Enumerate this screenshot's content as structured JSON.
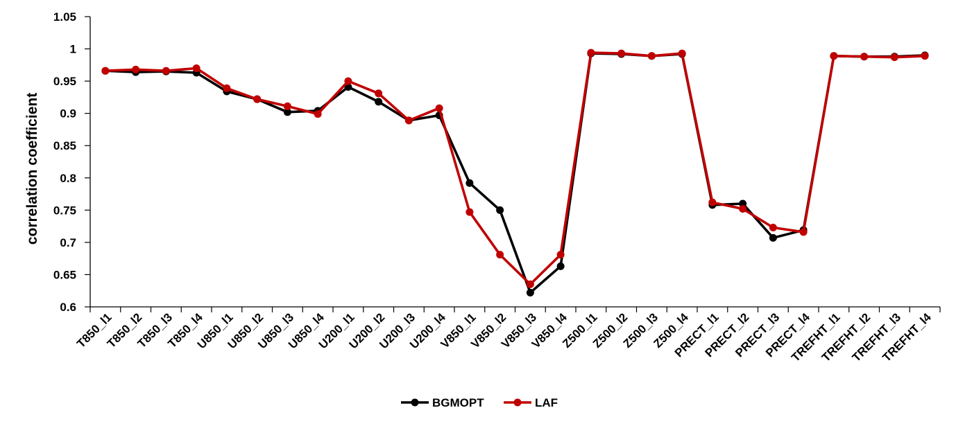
{
  "chart_data": {
    "type": "line",
    "title": "",
    "xlabel": "",
    "ylabel": "correlation coefficient",
    "ylim": [
      0.6,
      1.05
    ],
    "yticks": [
      "0.6",
      "0.65",
      "0.7",
      "0.75",
      "0.8",
      "0.85",
      "0.9",
      "0.95",
      "1",
      "1.05"
    ],
    "grid": false,
    "legend_position": "bottom-center",
    "categories": [
      "T850_l1",
      "T850_l2",
      "T850_l3",
      "T850_l4",
      "U850_l1",
      "U850_l2",
      "U850_l3",
      "U850_l4",
      "U200_l1",
      "U200_l2",
      "U200_l3",
      "U200_l4",
      "V850_l1",
      "V850_l2",
      "V850_l3",
      "V850_l4",
      "Z500_l1",
      "Z500_l2",
      "Z500_l3",
      "Z500_l4",
      "PRECT_l1",
      "PRECT_l2",
      "PRECT_l3",
      "PRECT_l4",
      "TREFHT_l1",
      "TREFHT_l2",
      "TREFHT_l3",
      "TREFHT_l4"
    ],
    "series": [
      {
        "name": "BGMOPT",
        "color": "#000000",
        "values": [
          0.966,
          0.964,
          0.965,
          0.963,
          0.934,
          0.922,
          0.902,
          0.904,
          0.941,
          0.918,
          0.889,
          0.897,
          0.792,
          0.75,
          0.622,
          0.663,
          0.993,
          0.992,
          0.989,
          0.992,
          0.758,
          0.76,
          0.707,
          0.719,
          0.989,
          0.988,
          0.988,
          0.99
        ]
      },
      {
        "name": "LAF",
        "color": "#C00000",
        "values": [
          0.966,
          0.968,
          0.966,
          0.97,
          0.939,
          0.922,
          0.911,
          0.899,
          0.95,
          0.931,
          0.889,
          0.908,
          0.747,
          0.681,
          0.635,
          0.681,
          0.994,
          0.993,
          0.989,
          0.993,
          0.762,
          0.752,
          0.723,
          0.716,
          0.989,
          0.988,
          0.987,
          0.989
        ]
      }
    ]
  }
}
